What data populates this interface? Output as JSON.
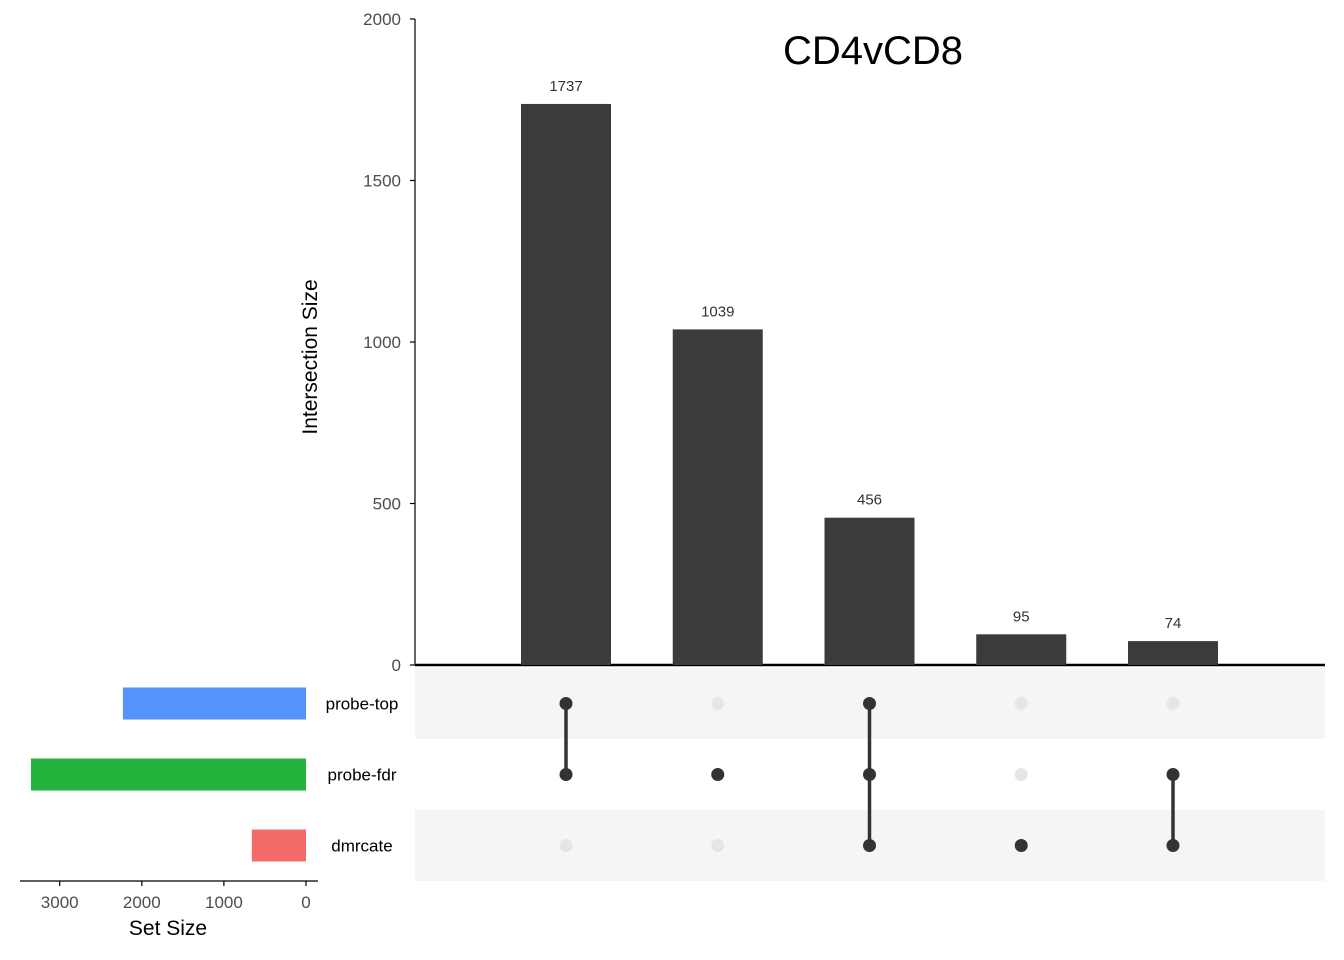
{
  "chart_data": {
    "type": "upset",
    "title": "CD4vCD8",
    "intersection_axis": {
      "label": "Intersection Size",
      "ylim": [
        0,
        2000
      ],
      "ticks": [
        0,
        500,
        1000,
        1500,
        2000
      ]
    },
    "set_size_axis": {
      "label": "Set Size",
      "ticks": [
        3000,
        2000,
        1000,
        0
      ]
    },
    "sets": [
      {
        "name": "probe-top",
        "size": 2230,
        "color": "#5393FA"
      },
      {
        "name": "probe-fdr",
        "size": 3350,
        "color": "#23B23C"
      },
      {
        "name": "dmrcate",
        "size": 660,
        "color": "#F36C67"
      }
    ],
    "intersections": [
      {
        "size": 1737,
        "label": "1737",
        "members": [
          "probe-top",
          "probe-fdr"
        ]
      },
      {
        "size": 1039,
        "label": "1039",
        "members": [
          "probe-fdr"
        ]
      },
      {
        "size": 456,
        "label": "456",
        "members": [
          "probe-top",
          "probe-fdr",
          "dmrcate"
        ]
      },
      {
        "size": 95,
        "label": "95",
        "members": [
          "dmrcate"
        ]
      },
      {
        "size": 74,
        "label": "74",
        "members": [
          "probe-fdr",
          "dmrcate"
        ]
      }
    ],
    "colors": {
      "bar": "#3B3B3B",
      "dot_active": "#333333",
      "dot_inactive": "#E6E6E6",
      "row_stripe": "#F5F5F5",
      "axis": "#000000",
      "tick_label": "#4D4D4D"
    }
  }
}
